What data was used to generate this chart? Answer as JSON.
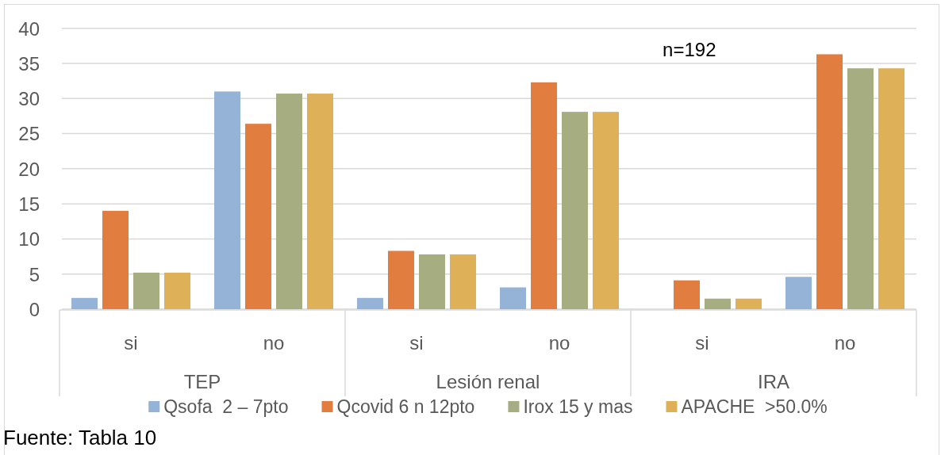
{
  "chart_data": {
    "type": "bar",
    "categories": [
      "si",
      "no",
      "si",
      "no",
      "si",
      "no"
    ],
    "series": [
      {
        "name": "Qsofa  2 – 7pto",
        "color": "#94b3d6",
        "values": [
          1.6,
          31,
          1.6,
          3.1,
          0,
          4.6
        ]
      },
      {
        "name": "Qcovid 6 n 12pto",
        "color": "#e27d40",
        "values": [
          14,
          26.4,
          8.3,
          32.3,
          4.1,
          36.3
        ]
      },
      {
        "name": "Irox 15 y mas",
        "color": "#a6ad80",
        "values": [
          5.2,
          30.7,
          7.8,
          28.1,
          1.5,
          34.3
        ]
      },
      {
        "name": "APACHE  >50.0%",
        "color": "#deb158",
        "values": [
          5.2,
          30.7,
          7.8,
          28.1,
          1.5,
          34.3
        ]
      }
    ],
    "ylim": [
      0,
      40
    ],
    "yticks": [
      0,
      5,
      10,
      15,
      20,
      25,
      30,
      35,
      40
    ],
    "grid": "y",
    "legend": "bottom",
    "annotations": [
      "n=192",
      "TEP",
      "Lesión renal",
      "IRA",
      "Fuente: Tabla 10"
    ]
  }
}
